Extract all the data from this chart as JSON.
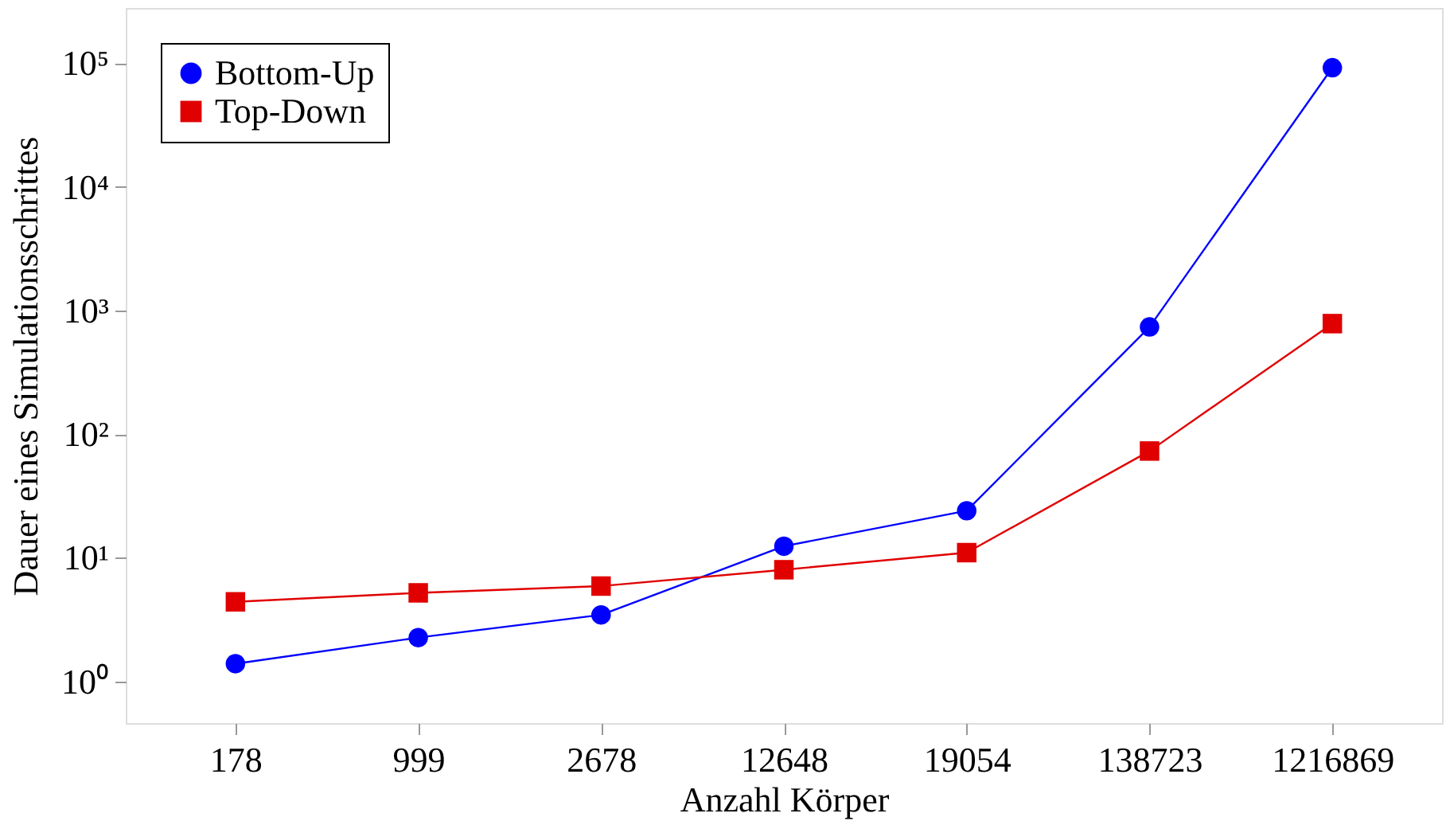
{
  "chart_data": {
    "type": "line",
    "xlabel": "Anzahl Körper",
    "ylabel": "Dauer eines Simulationsschrittes",
    "categories": [
      "178",
      "999",
      "2678",
      "12648",
      "19054",
      "138723",
      "1216869"
    ],
    "log": true,
    "ylim": [
      0.46,
      280000
    ],
    "yticks": [
      {
        "value": 1,
        "label": "10⁰"
      },
      {
        "value": 10,
        "label": "10¹"
      },
      {
        "value": 100,
        "label": "10²"
      },
      {
        "value": 1000,
        "label": "10³"
      },
      {
        "value": 10000,
        "label": "10⁴"
      },
      {
        "value": 100000,
        "label": "10⁵"
      }
    ],
    "grid": false,
    "legend": "top left",
    "series": [
      {
        "name": "Bottom-Up",
        "color": "#0000ff",
        "marker": "circle",
        "values": [
          1.39,
          2.26,
          3.45,
          12.4,
          24,
          736,
          92000
        ]
      },
      {
        "name": "Top-Down",
        "color": "#e00000",
        "marker": "square",
        "values": [
          4.4,
          5.2,
          5.9,
          8.0,
          11,
          73,
          783
        ]
      }
    ]
  }
}
